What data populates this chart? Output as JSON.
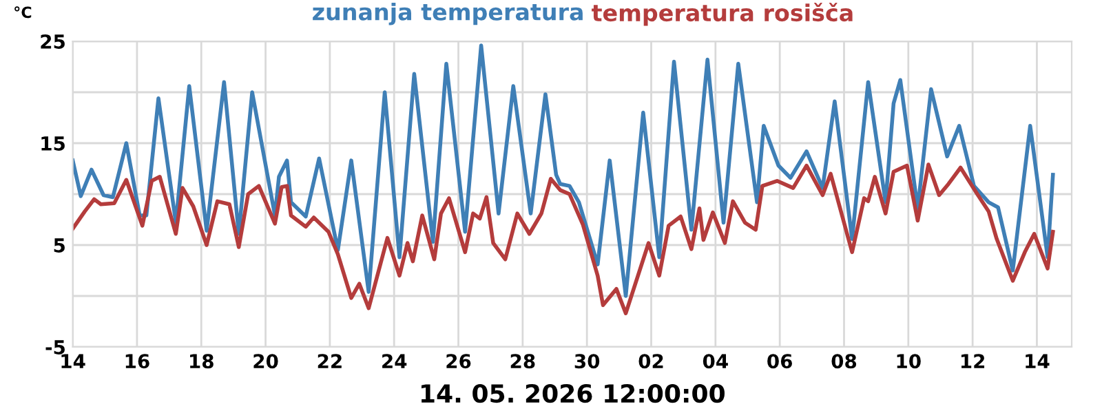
{
  "chart_data": {
    "type": "line",
    "ylabel": "°C",
    "xlabel": "14. 05. 2026 12:00:00",
    "legend": "top",
    "grid": true,
    "line_style": "solid",
    "xlim": [
      "2026-04-14",
      "2026-05-15T02:00"
    ],
    "xticks": [
      {
        "value": "2026-04-14",
        "label": "14"
      },
      {
        "value": "2026-04-16",
        "label": "16"
      },
      {
        "value": "2026-04-18",
        "label": "18"
      },
      {
        "value": "2026-04-20",
        "label": "20"
      },
      {
        "value": "2026-04-22",
        "label": "22"
      },
      {
        "value": "2026-04-24",
        "label": "24"
      },
      {
        "value": "2026-04-26",
        "label": "26"
      },
      {
        "value": "2026-04-28",
        "label": "28"
      },
      {
        "value": "2026-04-30",
        "label": "30"
      },
      {
        "value": "2026-05-02",
        "label": "02"
      },
      {
        "value": "2026-05-04",
        "label": "04"
      },
      {
        "value": "2026-05-06",
        "label": "06"
      },
      {
        "value": "2026-05-08",
        "label": "08"
      },
      {
        "value": "2026-05-10",
        "label": "10"
      },
      {
        "value": "2026-05-12",
        "label": "12"
      },
      {
        "value": "2026-05-14",
        "label": "14"
      }
    ],
    "ylim": [
      -5,
      25
    ],
    "yticks": [
      -5,
      {
        "value": 0,
        "label": null
      },
      5,
      {
        "value": 10,
        "label": null
      },
      15,
      {
        "value": 20,
        "label": null
      },
      25
    ],
    "series": [
      {
        "name": "zunanja temperatura",
        "color": "#3f7fb6",
        "x": [
          "2026-04-14T00:00",
          "2026-04-14T06:00",
          "2026-04-14T14:00",
          "2026-04-14T23:00",
          "2026-04-15T06:00",
          "2026-04-15T16:00",
          "2026-04-16T02:00",
          "2026-04-16T07:00",
          "2026-04-16T16:00",
          "2026-04-17T05:00",
          "2026-04-17T15:00",
          "2026-04-18T04:00",
          "2026-04-18T17:00",
          "2026-04-19T04:00",
          "2026-04-19T14:00",
          "2026-04-20T07:00",
          "2026-04-20T10:00",
          "2026-04-20T16:00",
          "2026-04-20T19:00",
          "2026-04-21T06:00",
          "2026-04-21T16:00",
          "2026-04-22T06:00",
          "2026-04-22T16:00",
          "2026-04-23T05:00",
          "2026-04-23T17:00",
          "2026-04-24T04:00",
          "2026-04-24T15:00",
          "2026-04-25T05:00",
          "2026-04-25T15:00",
          "2026-04-26T05:00",
          "2026-04-26T17:00",
          "2026-04-27T06:00",
          "2026-04-27T17:00",
          "2026-04-28T06:00",
          "2026-04-28T17:00",
          "2026-04-29T01:00",
          "2026-04-29T04:00",
          "2026-04-29T11:00",
          "2026-04-29T18:00",
          "2026-04-30T08:00",
          "2026-04-30T17:00",
          "2026-05-01T05:00",
          "2026-05-01T18:00",
          "2026-05-02T06:00",
          "2026-05-02T17:00",
          "2026-05-03T06:00",
          "2026-05-03T18:00",
          "2026-05-04T06:00",
          "2026-05-04T17:00",
          "2026-05-05T07:00",
          "2026-05-05T12:00",
          "2026-05-05T23:00",
          "2026-05-06T08:00",
          "2026-05-06T20:00",
          "2026-05-07T08:00",
          "2026-05-07T17:00",
          "2026-05-08T06:00",
          "2026-05-08T18:00",
          "2026-05-09T07:00",
          "2026-05-09T13:00",
          "2026-05-09T18:00",
          "2026-05-10T07:00",
          "2026-05-10T17:00",
          "2026-05-11T05:00",
          "2026-05-11T14:00",
          "2026-05-12T01:00",
          "2026-05-12T12:00",
          "2026-05-12T19:00",
          "2026-05-13T06:00",
          "2026-05-13T19:00",
          "2026-05-14T08:00",
          "2026-05-14T12:00"
        ],
        "values": [
          13.3,
          9.8,
          12.4,
          9.9,
          9.7,
          15.0,
          7.9,
          7.9,
          19.4,
          7.2,
          20.6,
          6.4,
          21.0,
          6.1,
          20.0,
          7.9,
          11.7,
          13.3,
          9.2,
          7.8,
          13.5,
          4.5,
          13.3,
          0.4,
          20.0,
          3.8,
          21.8,
          5.3,
          22.8,
          6.3,
          24.6,
          8.1,
          20.6,
          8.1,
          19.8,
          11.9,
          11.0,
          10.8,
          9.2,
          3.1,
          13.3,
          0.0,
          18.0,
          3.8,
          23.0,
          6.5,
          23.2,
          7.2,
          22.8,
          9.2,
          16.7,
          12.8,
          11.6,
          14.2,
          10.6,
          19.1,
          5.6,
          21.0,
          9.2,
          18.9,
          21.2,
          8.6,
          20.3,
          13.7,
          16.7,
          10.8,
          9.2,
          8.7,
          2.5,
          16.7,
          3.8,
          11.9
        ]
      },
      {
        "name": "temperatura rosišča",
        "color": "#b43c3c",
        "x": [
          "2026-04-14T00:00",
          "2026-04-14T09:00",
          "2026-04-14T16:00",
          "2026-04-14T21:00",
          "2026-04-15T07:00",
          "2026-04-15T16:00",
          "2026-04-16T04:00",
          "2026-04-16T11:00",
          "2026-04-16T17:00",
          "2026-04-17T05:00",
          "2026-04-17T10:00",
          "2026-04-17T18:00",
          "2026-04-18T04:00",
          "2026-04-18T12:00",
          "2026-04-18T21:00",
          "2026-04-19T04:00",
          "2026-04-19T11:00",
          "2026-04-19T19:00",
          "2026-04-20T07:00",
          "2026-04-20T12:00",
          "2026-04-20T16:00",
          "2026-04-20T19:00",
          "2026-04-21T06:00",
          "2026-04-21T12:00",
          "2026-04-21T23:00",
          "2026-04-22T06:00",
          "2026-04-22T16:00",
          "2026-04-22T22:00",
          "2026-04-23T05:00",
          "2026-04-23T19:00",
          "2026-04-24T04:00",
          "2026-04-24T10:00",
          "2026-04-24T14:00",
          "2026-04-24T21:00",
          "2026-04-25T06:00",
          "2026-04-25T11:00",
          "2026-04-25T17:00",
          "2026-04-26T05:00",
          "2026-04-26T11:00",
          "2026-04-26T16:00",
          "2026-04-26T21:00",
          "2026-04-27T02:00",
          "2026-04-27T11:00",
          "2026-04-27T20:00",
          "2026-04-28T05:00",
          "2026-04-28T14:00",
          "2026-04-28T21:00",
          "2026-04-29T04:00",
          "2026-04-29T11:00",
          "2026-04-29T21:00",
          "2026-04-30T08:00",
          "2026-04-30T12:00",
          "2026-04-30T22:00",
          "2026-05-01T05:00",
          "2026-05-01T22:00",
          "2026-05-02T06:00",
          "2026-05-02T13:00",
          "2026-05-02T22:00",
          "2026-05-03T06:00",
          "2026-05-03T12:00",
          "2026-05-03T15:00",
          "2026-05-03T22:00",
          "2026-05-04T07:00",
          "2026-05-04T13:00",
          "2026-05-04T22:00",
          "2026-05-05T06:00",
          "2026-05-05T11:00",
          "2026-05-05T22:00",
          "2026-05-06T10:00",
          "2026-05-06T20:00",
          "2026-05-07T08:00",
          "2026-05-07T14:00",
          "2026-05-08T06:00",
          "2026-05-08T15:00",
          "2026-05-08T18:00",
          "2026-05-08T23:00",
          "2026-05-09T07:00",
          "2026-05-09T13:00",
          "2026-05-09T23:00",
          "2026-05-10T07:00",
          "2026-05-10T15:00",
          "2026-05-10T23:00",
          "2026-05-11T06:00",
          "2026-05-11T15:00",
          "2026-05-12T03:00",
          "2026-05-12T12:00",
          "2026-05-12T18:00",
          "2026-05-13T06:00",
          "2026-05-13T15:00",
          "2026-05-13T22:00",
          "2026-05-14T08:00",
          "2026-05-14T12:00"
        ],
        "values": [
          6.6,
          8.3,
          9.5,
          9.0,
          9.1,
          11.4,
          6.9,
          11.3,
          11.7,
          6.1,
          10.6,
          8.8,
          5.0,
          9.3,
          9.0,
          4.8,
          10.0,
          10.8,
          7.1,
          10.7,
          10.8,
          7.9,
          6.8,
          7.7,
          6.3,
          4.1,
          -0.2,
          1.2,
          -1.2,
          5.7,
          2.0,
          5.2,
          3.4,
          7.9,
          3.6,
          8.1,
          9.6,
          4.3,
          8.1,
          7.6,
          9.7,
          5.2,
          3.6,
          8.1,
          6.1,
          8.1,
          11.5,
          10.4,
          10.0,
          7.0,
          2.0,
          -0.9,
          0.7,
          -1.7,
          5.2,
          2.0,
          6.9,
          7.8,
          4.6,
          8.6,
          5.5,
          8.2,
          5.2,
          9.3,
          7.2,
          6.5,
          10.8,
          11.3,
          10.6,
          12.8,
          9.9,
          12.0,
          4.3,
          9.6,
          9.3,
          11.7,
          8.1,
          12.2,
          12.8,
          7.4,
          12.9,
          9.9,
          11.0,
          12.6,
          10.1,
          8.3,
          5.6,
          1.5,
          4.3,
          6.1,
          2.7,
          6.3
        ]
      }
    ]
  }
}
